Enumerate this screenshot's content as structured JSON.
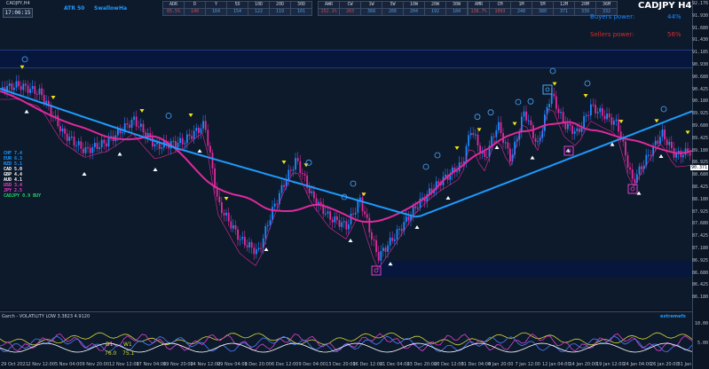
{
  "header": {
    "symbol_timeframe": "CADJPY,H4",
    "clock": "17:06:15",
    "links": [
      "ATR 50",
      "Swallow",
      "Ha"
    ]
  },
  "tables": [
    {
      "name": "adr",
      "headers": [
        "ADR",
        "D",
        "Y",
        "5D",
        "10D",
        "20D",
        "30D"
      ],
      "values": [
        "85.5%",
        "140",
        "164",
        "154",
        "122",
        "119",
        "101"
      ],
      "value_colors": [
        "vr",
        "vr",
        "vb",
        "vb",
        "vb",
        "vb",
        "vb"
      ]
    },
    {
      "name": "awr",
      "headers": [
        "AWR",
        "CW",
        "1W",
        "5W",
        "10W",
        "20W",
        "30W"
      ],
      "values": [
        "152.1%",
        "283",
        "368",
        "266",
        "204",
        "192",
        "184"
      ],
      "value_colors": [
        "vr",
        "vr",
        "vb",
        "vb",
        "vb",
        "vb",
        "vb"
      ]
    },
    {
      "name": "amr",
      "headers": [
        "AMR",
        "CM",
        "1M",
        "5M",
        "12M",
        "20M",
        "36M"
      ],
      "values": [
        "138.7%",
        "1093",
        "248",
        "380",
        "371",
        "339",
        "332"
      ],
      "value_colors": [
        "vr",
        "vr",
        "vb",
        "vb",
        "vb",
        "vb",
        "vb"
      ]
    }
  ],
  "title_big": "CADJPY H4",
  "buyers": {
    "label": "Buyers power:",
    "value": "44%",
    "color": "#1e88ff"
  },
  "sellers": {
    "label": "Sellers power:",
    "value": "56%",
    "color": "#d92b2b"
  },
  "strength": [
    {
      "text": "CHF 7.4",
      "color": "#1e9bff"
    },
    {
      "text": "EUR 6.3",
      "color": "#1e9bff"
    },
    {
      "text": "NZD 5.1",
      "color": "#1e9bff"
    },
    {
      "text": "CAD 5.0",
      "color": "#ffffff"
    },
    {
      "text": "GBP 4.4",
      "color": "#ffffff"
    },
    {
      "text": "AUD 4.1",
      "color": "#ffffff"
    },
    {
      "text": "USD 3.4",
      "color": "#ff3ad1"
    },
    {
      "text": "JPY 2.5",
      "color": "#ff3ad1"
    },
    {
      "text": "CADJPY 0.9 BUY",
      "color": "#22d36a"
    }
  ],
  "price_axis": [
    "92.176",
    "91.930",
    "91.680",
    "91.430",
    "91.185",
    "90.930",
    "90.680",
    "90.425",
    "90.180",
    "89.925",
    "89.680",
    "89.425",
    "89.180",
    "88.925",
    "88.680",
    "88.425",
    "88.180",
    "87.925",
    "87.680",
    "87.425",
    "87.180",
    "86.925",
    "86.680",
    "86.425",
    "86.180"
  ],
  "current_price": "90.371",
  "time_axis": [
    "29 Oct 2021",
    "2 Nov 12:00",
    "5 Nov 04:00",
    "9 Nov 20:00",
    "12 Nov 12:00",
    "17 Nov 04:00",
    "19 Nov 20:00",
    "24 Nov 12:00",
    "29 Nov 04:00",
    "1 Dec 20:00",
    "6 Dec 12:00",
    "9 Dec 04:00",
    "13 Dec 20:00",
    "16 Dec 12:00",
    "21 Dec 04:00",
    "23 Dec 20:00",
    "28 Dec 12:00",
    "31 Dec 04:00",
    "4 Jan 20:00",
    "7 Jan 12:00",
    "12 Jan 04:00",
    "14 Jan 20:00",
    "19 Jan 12:00",
    "24 Jan 04:00",
    "26 Jan 20:00",
    "31 Jan 12:00"
  ],
  "subwindow": {
    "title": "Garch - VOLATILITY LOW 3.3823 4.9120",
    "brand": "extremefx",
    "d1_label": "D1",
    "w1_label": "W1",
    "d1_value": "76.0",
    "w1_value": "75.1",
    "axis": [
      "10.00",
      "5.00"
    ]
  },
  "colors": {
    "bull": "#1e88ff",
    "bear": "#e0299d",
    "ma_slow": "#1e9bff",
    "ma_fast": "#e0299d",
    "band": "#06163c",
    "arrow_up": "#ffffff",
    "arrow_down": "#f2e21a"
  }
}
